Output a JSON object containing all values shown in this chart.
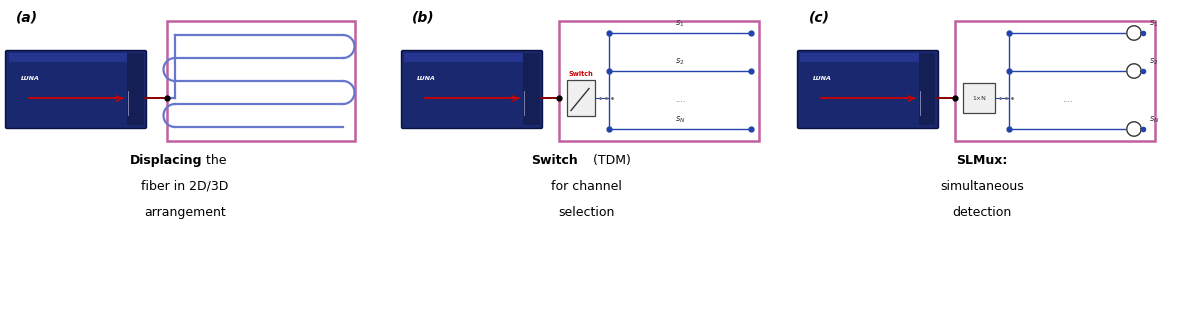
{
  "bg_color": "#ffffff",
  "panel_border_color": "#c060a0",
  "fiber_color": "#6677cc",
  "line_color": "#2244aa",
  "red_line_color": "#cc0000",
  "blue_dot_color": "#2244aa",
  "switch_label_color": "#cc0000",
  "label_color": "#000000",
  "panel_a_label": "(a)",
  "panel_b_label": "(b)",
  "panel_c_label": "(c)",
  "caption_a_bold": "Displacing",
  "caption_a_rest": " the",
  "caption_a_line2": "fiber in 2D/3D",
  "caption_a_line3": "arrangement",
  "caption_b_bold": "Switch",
  "caption_b_rest": " (TDM)",
  "caption_b_line2": "for channel",
  "caption_b_line3": "selection",
  "caption_c_bold": "SLMux:",
  "caption_c_line2": "simultaneous",
  "caption_c_line3": "detection"
}
